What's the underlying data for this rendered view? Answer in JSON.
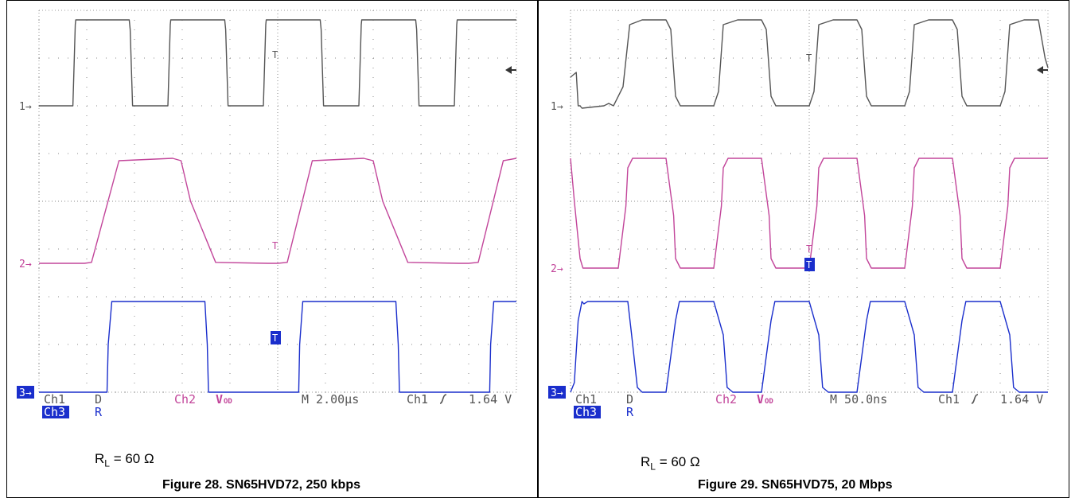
{
  "figures": [
    {
      "caption": "Figure 28. SN65HVD72, 250 kbps",
      "load": {
        "sym": "R",
        "sub": "L",
        "rest": " = 60 Ω"
      },
      "readout": {
        "ch1": "Ch1",
        "ch1_signal": "D",
        "ch3": "Ch3",
        "ch3_signal": "R",
        "ch2": "Ch2",
        "ch2_signal_main": "V",
        "ch2_signal_sub": "OD",
        "timebase": "M 2.00µs",
        "trigger_src": "Ch1",
        "trigger_level": "1.64 V"
      },
      "markers": [
        "1",
        "2",
        "3"
      ],
      "chart_data": {
        "type": "line",
        "xlabel": "",
        "ylabel": "",
        "xlim": [
          0,
          20
        ],
        "ylim": [
          0,
          8
        ],
        "x_unit": "µs",
        "grid": true,
        "series": [
          {
            "channel": "1",
            "color": "#555555",
            "low": 6.0,
            "high": 7.8,
            "x": [
              0,
              1.42,
              1.52,
              1.54,
              3.78,
              3.82,
              3.92,
              5.4,
              5.5,
              5.52,
              7.78,
              7.82,
              7.92,
              9.4,
              9.5,
              9.52,
              11.78,
              11.82,
              11.92,
              13.4,
              13.5,
              13.52,
              15.78,
              15.82,
              15.92,
              17.4,
              17.5,
              17.52,
              20
            ],
            "y": [
              6.0,
              6.0,
              7.7,
              7.8,
              7.8,
              7.6,
              6.0,
              6.0,
              7.7,
              7.8,
              7.8,
              7.6,
              6.0,
              6.0,
              7.7,
              7.8,
              7.8,
              7.6,
              6.0,
              6.0,
              7.7,
              7.8,
              7.8,
              7.6,
              6.0,
              6.0,
              7.7,
              7.8,
              7.8
            ]
          },
          {
            "channel": "2",
            "color": "#c2459a",
            "low": 2.7,
            "high": 4.9,
            "x": [
              0,
              1.9,
              2.2,
              3.35,
              5.6,
              5.95,
              6.35,
              7.4,
              9.6,
              10.0,
              10.4,
              11.45,
              13.6,
              14.0,
              14.4,
              15.45,
              17.6,
              18.0,
              18.4,
              19.45,
              20
            ],
            "y": [
              2.7,
              2.7,
              2.72,
              4.85,
              4.9,
              4.85,
              4.0,
              2.72,
              2.7,
              2.7,
              2.72,
              4.85,
              4.9,
              4.85,
              4.0,
              2.72,
              2.7,
              2.7,
              2.72,
              4.85,
              4.9
            ]
          },
          {
            "channel": "3",
            "color": "#1a2ecc",
            "low": 0.0,
            "high": 1.9,
            "x": [
              0,
              2.85,
              2.9,
              3.05,
              6.95,
              7.05,
              7.1,
              10.88,
              10.92,
              11.05,
              14.95,
              15.05,
              15.1,
              18.88,
              18.92,
              19.05,
              20
            ],
            "y": [
              0.0,
              0.0,
              1.0,
              1.9,
              1.9,
              1.0,
              0.0,
              0.0,
              1.0,
              1.9,
              1.9,
              1.0,
              0.0,
              0.0,
              1.0,
              1.9,
              1.9
            ]
          }
        ]
      }
    },
    {
      "caption": "Figure 29. SN65HVD75, 20 Mbps",
      "load": {
        "sym": "R",
        "sub": "L",
        "rest": " = 60 Ω"
      },
      "readout": {
        "ch1": "Ch1",
        "ch1_signal": "D",
        "ch3": "Ch3",
        "ch3_signal": "R",
        "ch2": "Ch2",
        "ch2_signal_main": "V",
        "ch2_signal_sub": "OD",
        "timebase": "M 50.0ns",
        "trigger_src": "Ch1",
        "trigger_level": "1.64 V"
      },
      "markers": [
        "1",
        "2",
        "3"
      ],
      "chart_data": {
        "type": "line",
        "xlabel": "",
        "ylabel": "",
        "xlim": [
          0,
          500
        ],
        "ylim": [
          0,
          8
        ],
        "x_unit": "ns",
        "grid": true,
        "series": [
          {
            "channel": "1",
            "color": "#555555",
            "low": 6.0,
            "high": 7.8,
            "x": [
              0,
              6,
              8,
              10,
              12,
              35,
              40,
              45,
              55,
              62,
              75,
              100,
              105,
              110,
              115,
              125,
              150,
              155,
              160,
              175,
              200,
              205,
              210,
              215,
              225,
              250,
              255,
              260,
              275,
              300,
              305,
              310,
              315,
              325,
              350,
              355,
              360,
              375,
              400,
              405,
              410,
              415,
              425,
              450,
              455,
              460,
              475,
              490,
              497,
              500
            ],
            "y": [
              6.6,
              6.7,
              6.0,
              6.0,
              5.95,
              6.0,
              6.05,
              6.0,
              6.4,
              7.7,
              7.8,
              7.8,
              7.6,
              6.2,
              6.0,
              6.0,
              6.0,
              6.3,
              7.7,
              7.8,
              7.8,
              7.6,
              6.2,
              6.0,
              6.0,
              6.0,
              6.3,
              7.7,
              7.8,
              7.8,
              7.6,
              6.2,
              6.0,
              6.0,
              6.0,
              6.3,
              7.7,
              7.8,
              7.8,
              7.6,
              6.2,
              6.0,
              6.0,
              6.0,
              6.3,
              7.7,
              7.8,
              7.8,
              7.0,
              6.8
            ]
          },
          {
            "channel": "2",
            "color": "#c2459a",
            "low": 2.6,
            "high": 4.9,
            "x": [
              0,
              4,
              10,
              13,
              35,
              50,
              58,
              60,
              65,
              85,
              100,
              108,
              110,
              115,
              135,
              150,
              158,
              160,
              165,
              185,
              200,
              208,
              210,
              215,
              235,
              250,
              258,
              260,
              265,
              285,
              300,
              308,
              310,
              315,
              335,
              350,
              358,
              360,
              365,
              385,
              400,
              408,
              410,
              415,
              435,
              450,
              458,
              460,
              465,
              485,
              500
            ],
            "y": [
              4.9,
              4.0,
              2.8,
              2.6,
              2.6,
              2.6,
              3.9,
              4.7,
              4.9,
              4.9,
              4.9,
              3.7,
              2.8,
              2.6,
              2.6,
              2.6,
              3.9,
              4.7,
              4.9,
              4.9,
              4.9,
              3.7,
              2.8,
              2.6,
              2.6,
              2.6,
              3.9,
              4.7,
              4.9,
              4.9,
              4.9,
              3.7,
              2.8,
              2.6,
              2.6,
              2.6,
              3.9,
              4.7,
              4.9,
              4.9,
              4.9,
              3.7,
              2.8,
              2.6,
              2.6,
              2.6,
              3.9,
              4.7,
              4.9,
              4.9,
              4.9
            ]
          },
          {
            "channel": "3",
            "color": "#1a2ecc",
            "low": 0.0,
            "high": 1.9,
            "x": [
              0,
              4,
              8,
              12,
              14,
              18,
              60,
              64,
              70,
              75,
              100,
              110,
              114,
              120,
              125,
              150,
              160,
              164,
              170,
              175,
              200,
              210,
              214,
              220,
              225,
              250,
              260,
              264,
              270,
              275,
              300,
              310,
              314,
              320,
              325,
              350,
              360,
              364,
              370,
              375,
              400,
              410,
              414,
              420,
              425,
              450,
              460,
              464,
              470,
              475,
              500
            ],
            "y": [
              0.0,
              0.2,
              1.5,
              1.9,
              1.85,
              1.9,
              1.9,
              1.2,
              0.1,
              0.0,
              0.0,
              1.5,
              1.9,
              1.9,
              1.9,
              1.9,
              1.2,
              0.1,
              0.0,
              0.0,
              0.0,
              1.5,
              1.9,
              1.9,
              1.9,
              1.9,
              1.2,
              0.1,
              0.0,
              0.0,
              0.0,
              1.5,
              1.9,
              1.9,
              1.9,
              1.9,
              1.2,
              0.1,
              0.0,
              0.0,
              0.0,
              1.5,
              1.9,
              1.9,
              1.9,
              1.9,
              1.2,
              0.1,
              0.0,
              0.0,
              0.0
            ]
          }
        ]
      }
    }
  ]
}
